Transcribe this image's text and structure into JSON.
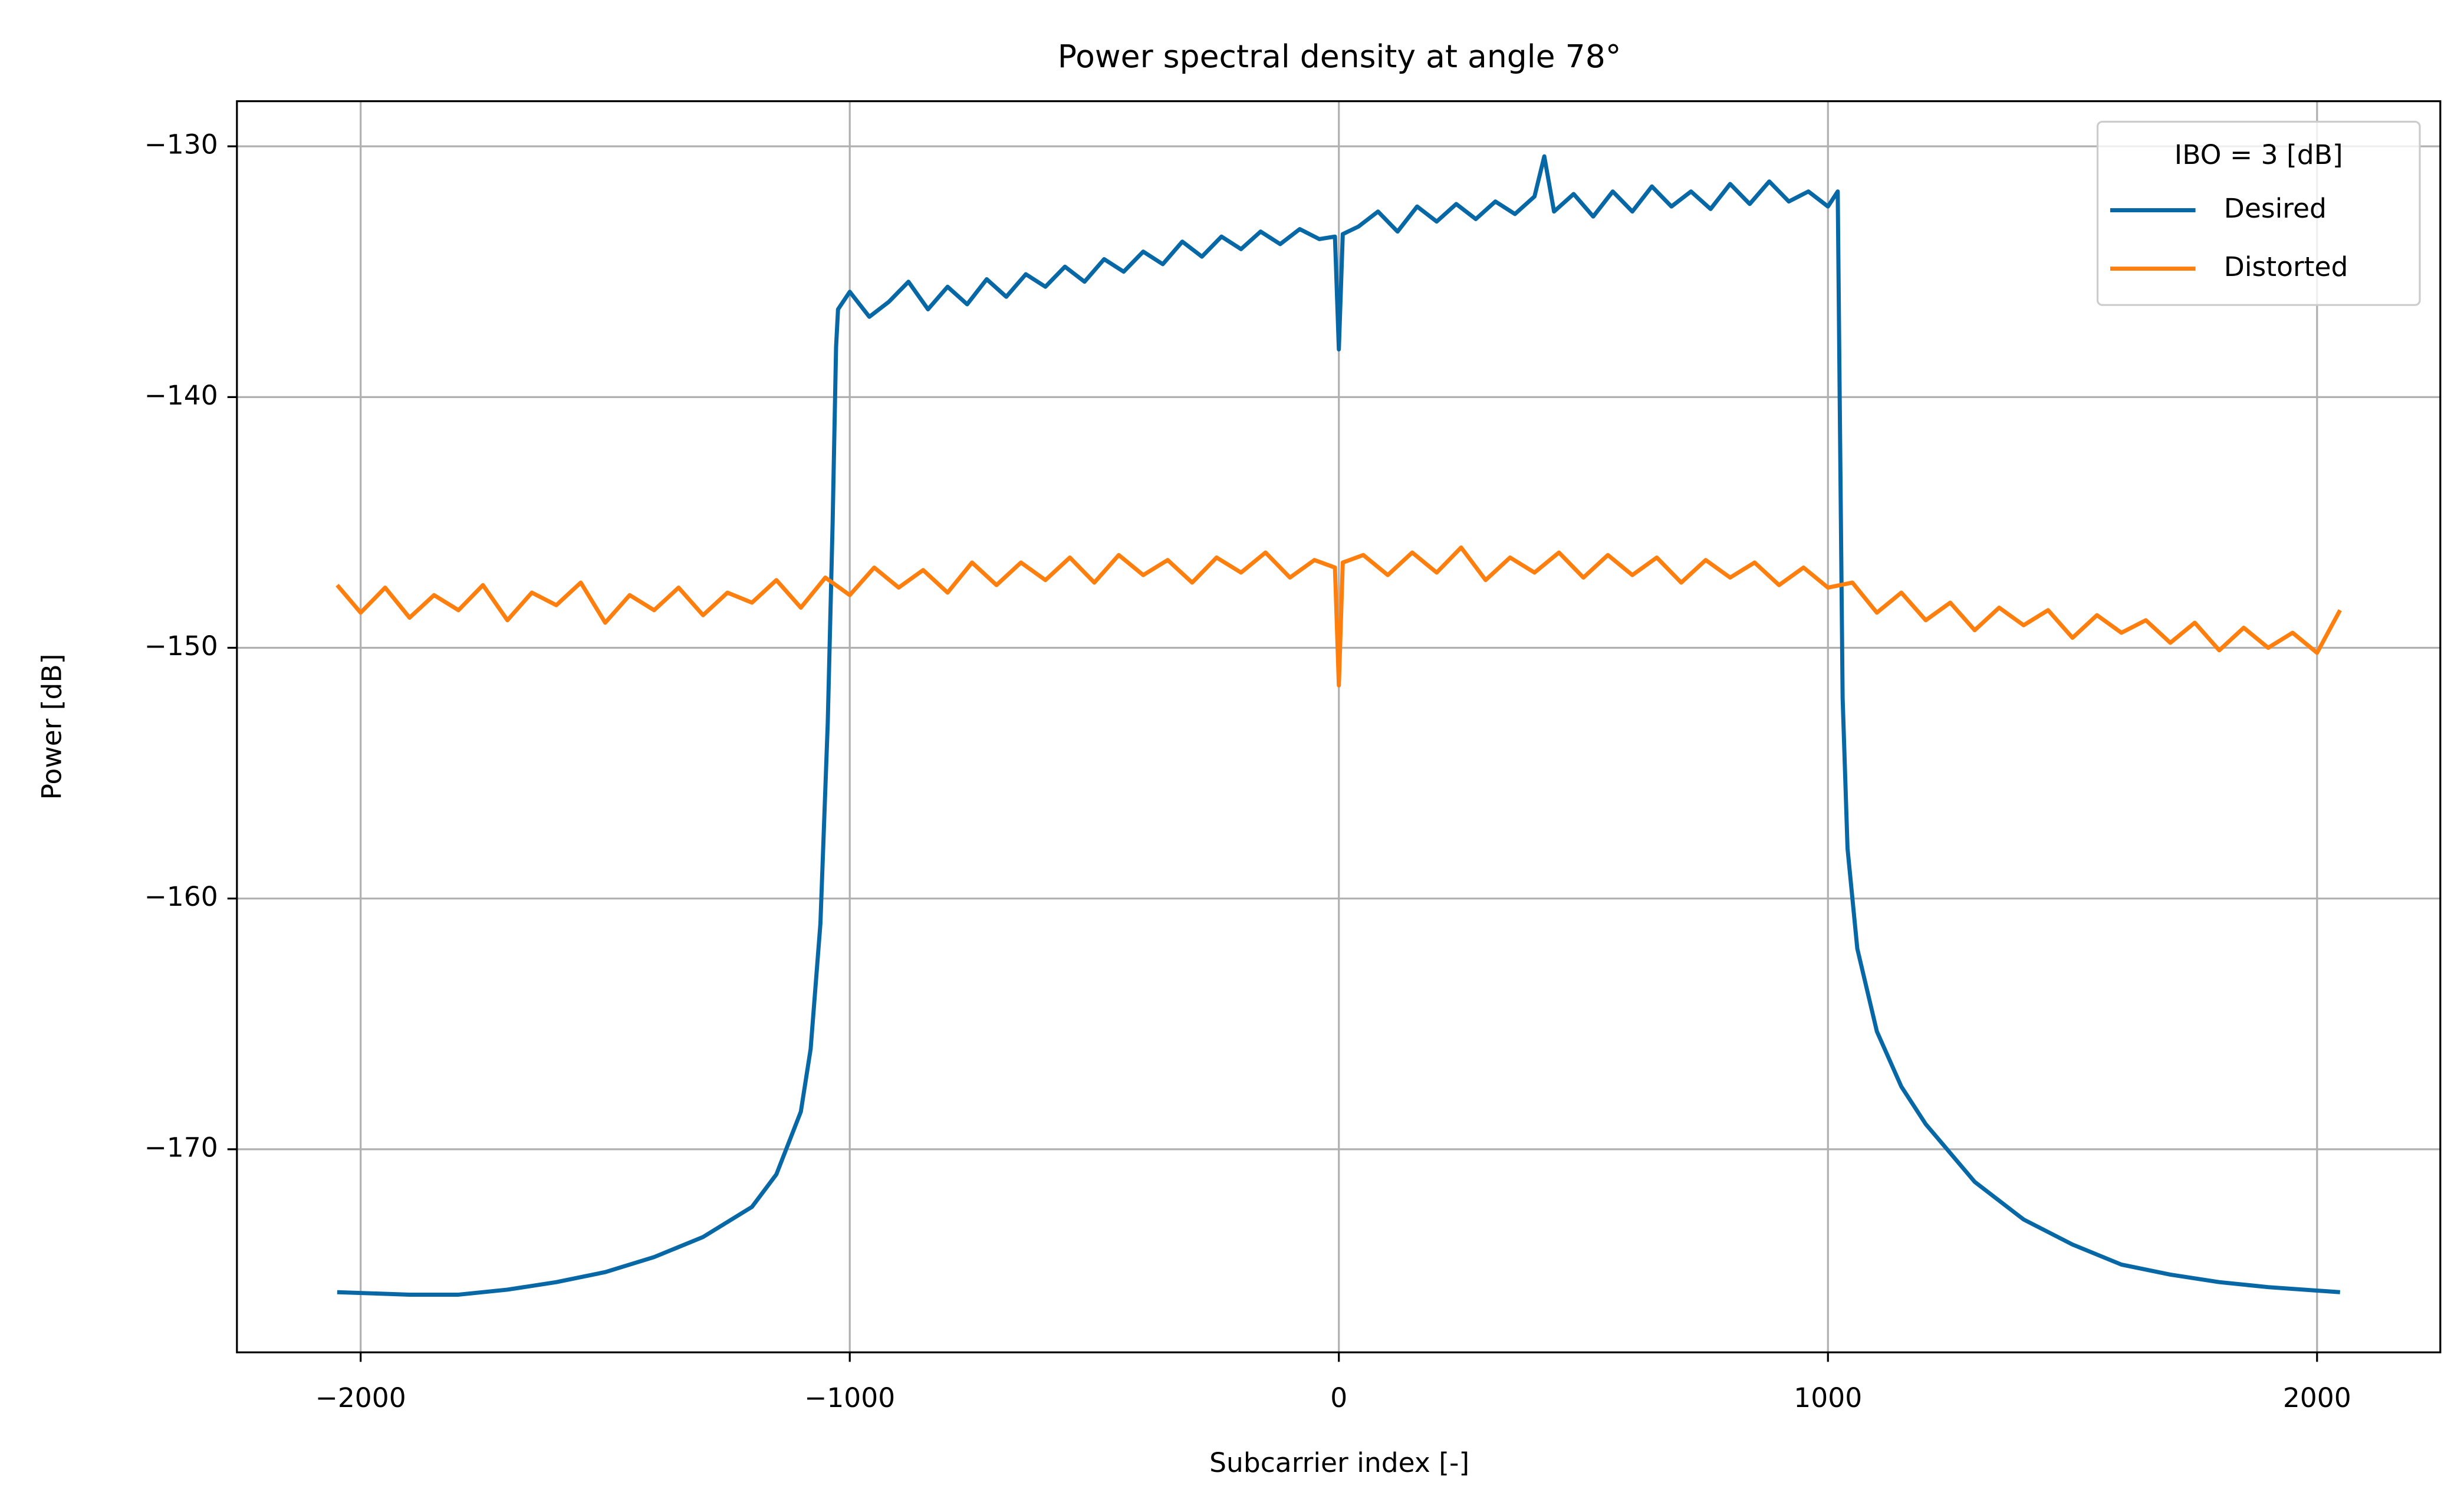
{
  "chart_data": {
    "type": "line",
    "title": "Power spectral density at angle 78°",
    "x_label": "Subcarrier index [-]",
    "y_label": "Power [dB]",
    "legend_title": "IBO = 3 [dB]",
    "legend_loc": "upper right",
    "grid": true,
    "xlim": [
      -2253,
      2252
    ],
    "ylim": [
      -178.1,
      -128.2
    ],
    "xticks": [
      {
        "value": -2000,
        "label": "−2000"
      },
      {
        "value": -1000,
        "label": "−1000"
      },
      0,
      1000,
      2000
    ],
    "yticks": [
      {
        "value": -170,
        "label": "−170"
      },
      {
        "value": -160,
        "label": "−160"
      },
      {
        "value": -150,
        "label": "−150"
      },
      {
        "value": -140,
        "label": "−140"
      },
      {
        "value": -130,
        "label": "−130"
      }
    ],
    "series": [
      {
        "name": "Desired",
        "color": "#0868a6",
        "x": [
          -2048,
          -1900,
          -1800,
          -1700,
          -1600,
          -1500,
          -1400,
          -1300,
          -1200,
          -1150,
          -1100,
          -1080,
          -1060,
          -1045,
          -1035,
          -1028,
          -1024,
          -1000,
          -960,
          -920,
          -880,
          -840,
          -800,
          -760,
          -720,
          -680,
          -640,
          -600,
          -560,
          -520,
          -480,
          -440,
          -400,
          -360,
          -320,
          -280,
          -240,
          -200,
          -160,
          -120,
          -80,
          -40,
          -8,
          0,
          8,
          40,
          80,
          120,
          160,
          200,
          240,
          280,
          320,
          360,
          400,
          420,
          440,
          480,
          520,
          560,
          600,
          640,
          680,
          720,
          760,
          800,
          840,
          880,
          920,
          960,
          1000,
          1020,
          1024,
          1030,
          1040,
          1060,
          1100,
          1150,
          1200,
          1300,
          1400,
          1500,
          1600,
          1700,
          1800,
          1900,
          2047
        ],
        "values": [
          -175.7,
          -175.8,
          -175.8,
          -175.6,
          -175.3,
          -174.9,
          -174.3,
          -173.5,
          -172.3,
          -171.0,
          -168.5,
          -166,
          -161,
          -153,
          -145,
          -138,
          -136.5,
          -135.8,
          -136.8,
          -136.2,
          -135.4,
          -136.5,
          -135.6,
          -136.3,
          -135.3,
          -136.0,
          -135.1,
          -135.6,
          -134.8,
          -135.4,
          -134.5,
          -135.0,
          -134.2,
          -134.7,
          -133.8,
          -134.4,
          -133.6,
          -134.1,
          -133.4,
          -133.9,
          -133.3,
          -133.7,
          -133.6,
          -138.1,
          -133.5,
          -133.2,
          -132.6,
          -133.4,
          -132.4,
          -133.0,
          -132.3,
          -132.9,
          -132.2,
          -132.7,
          -132.0,
          -130.4,
          -132.6,
          -131.9,
          -132.8,
          -131.8,
          -132.6,
          -131.6,
          -132.4,
          -131.8,
          -132.5,
          -131.5,
          -132.3,
          -131.4,
          -132.2,
          -131.8,
          -132.4,
          -131.8,
          -140,
          -152,
          -158,
          -162,
          -165.3,
          -167.5,
          -169,
          -171.3,
          -172.8,
          -173.8,
          -174.6,
          -175.0,
          -175.3,
          -175.5,
          -175.7
        ]
      },
      {
        "name": "Distorted",
        "color": "#ff7f0e",
        "x": [
          -2048,
          -2000,
          -1950,
          -1900,
          -1850,
          -1800,
          -1750,
          -1700,
          -1650,
          -1600,
          -1550,
          -1500,
          -1450,
          -1400,
          -1350,
          -1300,
          -1250,
          -1200,
          -1150,
          -1100,
          -1050,
          -1000,
          -950,
          -900,
          -850,
          -800,
          -750,
          -700,
          -650,
          -600,
          -550,
          -500,
          -450,
          -400,
          -350,
          -300,
          -250,
          -200,
          -150,
          -100,
          -50,
          -8,
          0,
          8,
          50,
          100,
          150,
          200,
          250,
          300,
          350,
          400,
          450,
          500,
          550,
          600,
          650,
          700,
          750,
          800,
          850,
          900,
          950,
          1000,
          1050,
          1100,
          1150,
          1200,
          1250,
          1300,
          1350,
          1400,
          1450,
          1500,
          1550,
          1600,
          1650,
          1700,
          1750,
          1800,
          1850,
          1900,
          1950,
          2000,
          2047
        ],
        "values": [
          -147.5,
          -148.6,
          -147.6,
          -148.8,
          -147.9,
          -148.5,
          -147.5,
          -148.9,
          -147.8,
          -148.3,
          -147.4,
          -149.0,
          -147.9,
          -148.5,
          -147.6,
          -148.7,
          -147.8,
          -148.2,
          -147.3,
          -148.4,
          -147.2,
          -147.9,
          -146.8,
          -147.6,
          -146.9,
          -147.8,
          -146.6,
          -147.5,
          -146.6,
          -147.3,
          -146.4,
          -147.4,
          -146.3,
          -147.1,
          -146.5,
          -147.4,
          -146.4,
          -147.0,
          -146.2,
          -147.2,
          -146.5,
          -146.8,
          -151.5,
          -146.6,
          -146.3,
          -147.1,
          -146.2,
          -147.0,
          -146.0,
          -147.3,
          -146.4,
          -147.0,
          -146.2,
          -147.2,
          -146.3,
          -147.1,
          -146.4,
          -147.4,
          -146.5,
          -147.2,
          -146.6,
          -147.5,
          -146.8,
          -147.6,
          -147.4,
          -148.6,
          -147.8,
          -148.9,
          -148.2,
          -149.3,
          -148.4,
          -149.1,
          -148.5,
          -149.6,
          -148.7,
          -149.4,
          -148.9,
          -149.8,
          -149.0,
          -150.1,
          -149.2,
          -150.0,
          -149.4,
          -150.2,
          -148.5
        ]
      }
    ]
  }
}
